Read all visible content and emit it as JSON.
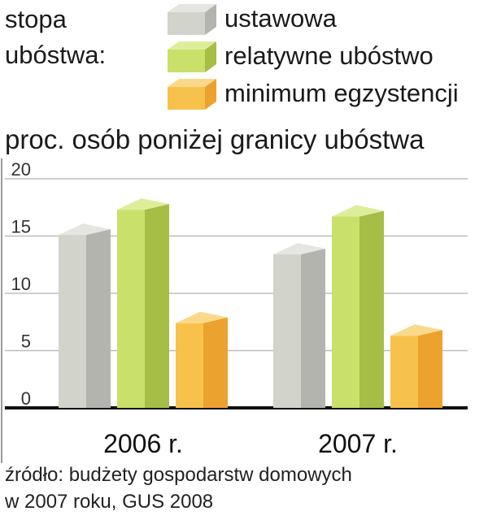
{
  "legend": {
    "title_line1": "stopa",
    "title_line2": "ubóstwa:",
    "items": [
      {
        "label": "ustawowa",
        "color_front": "#d2d3cb",
        "color_side": "#b3b4ad",
        "color_top": "#e6e6e1"
      },
      {
        "label": "relatywne ubóstwo",
        "color_front": "#c9e06a",
        "color_side": "#a6bd46",
        "color_top": "#ddee9a"
      },
      {
        "label": "minimum egzystencji",
        "color_front": "#f7c24b",
        "color_side": "#eba22f",
        "color_top": "#fad98a"
      }
    ]
  },
  "chart_data": {
    "type": "bar",
    "title": "proc. osób poniżej granicy ubóstwa",
    "categories": [
      "2006 r.",
      "2007 r."
    ],
    "series": [
      {
        "name": "ustawowa",
        "values": [
          15.1,
          13.4
        ]
      },
      {
        "name": "relatywne ubóstwo",
        "values": [
          17.3,
          16.7
        ]
      },
      {
        "name": "minimum egzystencji",
        "values": [
          7.4,
          6.3
        ]
      }
    ],
    "ylim": [
      0,
      20
    ],
    "yticks": [
      0,
      5,
      10,
      15,
      20
    ],
    "grid": true,
    "legend_position": "top"
  },
  "source": {
    "line1": "źródło: budżety gospodarstw domowych",
    "line2": "w 2007 roku, GUS 2008"
  }
}
